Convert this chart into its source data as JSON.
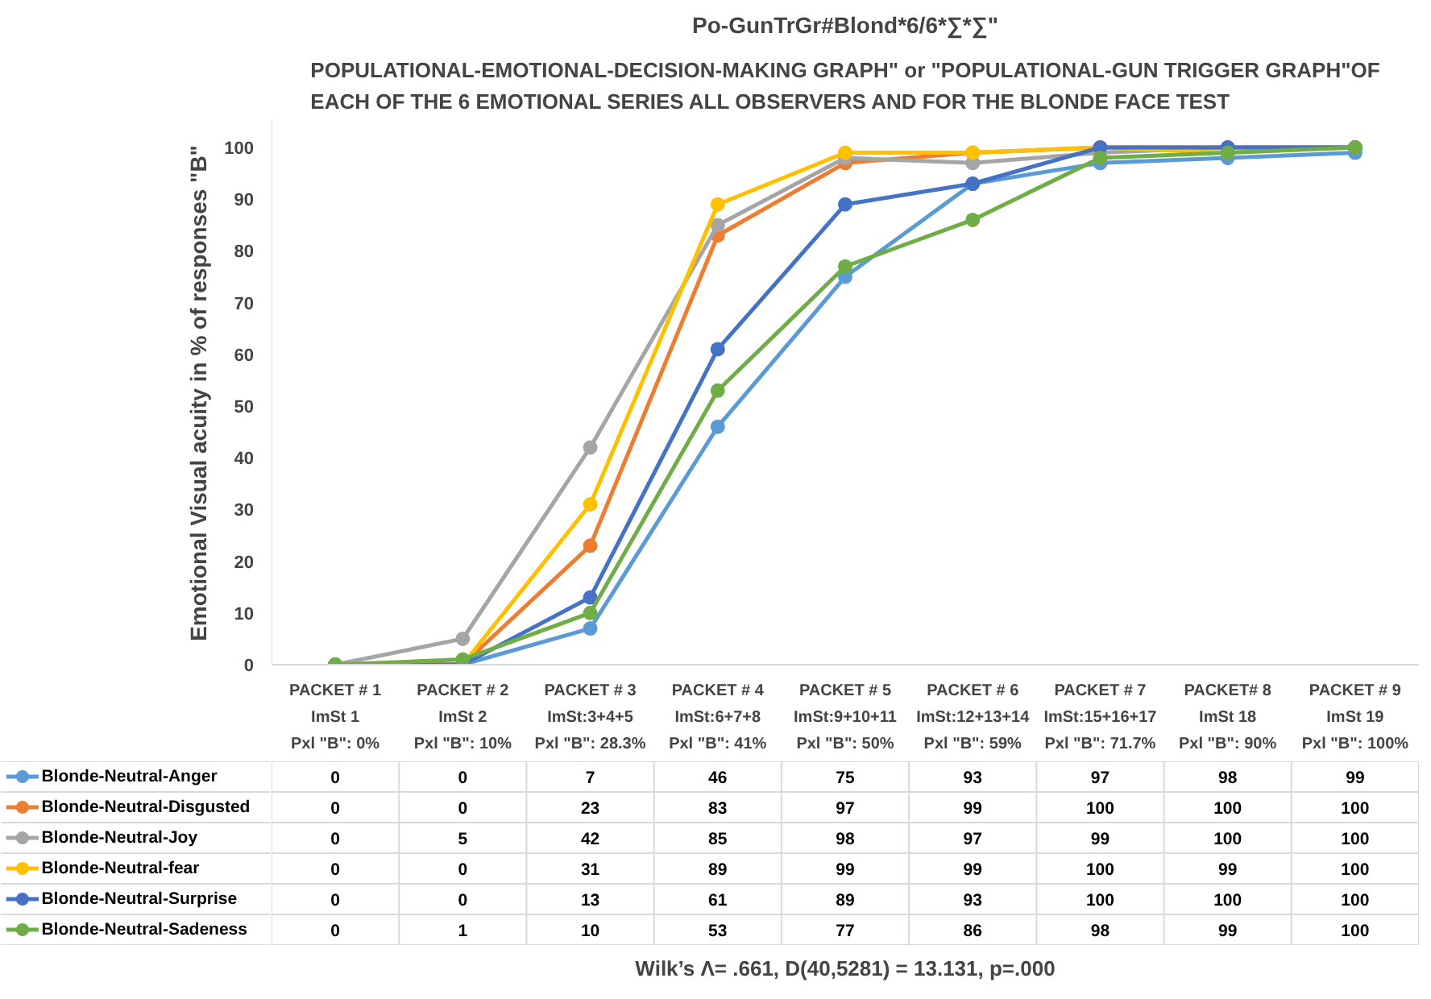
{
  "chart_data": {
    "type": "line",
    "title": "Po-GunTrGr#Blond*6/6*∑*∑\"",
    "subtitle": "POPULATIONAL-EMOTIONAL-DECISION-MAKING GRAPH\" or \"POPULATIONAL-GUN TRIGGER GRAPH\"OF\nEACH OF THE 6 EMOTIONAL SERIES ALL OBSERVERS  AND FOR THE BLONDE FACE TEST",
    "ylabel": "Emotional Visual acuity in % of responses \"B\"",
    "categories": [
      "PACKET # 1\nImSt 1\nPxl \"B\": 0%",
      "PACKET # 2\nImSt 2\nPxl \"B\": 10%",
      "PACKET # 3\nImSt:3+4+5\nPxl \"B\": 28.3%",
      "PACKET # 4\nImSt:6+7+8\nPxl \"B\": 41%",
      "PACKET # 5\nImSt:9+10+11\nPxl \"B\": 50%",
      "PACKET # 6\nImSt:12+13+14\nPxl \"B\": 59%",
      "PACKET # 7\nImSt:15+16+17\nPxl \"B\": 71.7%",
      "PACKET# 8\nImSt 18\nPxl \"B\": 90%",
      "PACKET # 9\nImSt 19\nPxl \"B\": 100%"
    ],
    "series": [
      {
        "name": "Blonde-Neutral-Anger",
        "color": "#5b9bd5",
        "values": [
          0,
          0,
          7,
          46,
          75,
          93,
          97,
          98,
          99
        ]
      },
      {
        "name": "Blonde-Neutral-Disgusted",
        "color": "#ed7d31",
        "values": [
          0,
          0,
          23,
          83,
          97,
          99,
          100,
          100,
          100
        ]
      },
      {
        "name": "Blonde-Neutral-Joy",
        "color": "#a5a5a5",
        "values": [
          0,
          5,
          42,
          85,
          98,
          97,
          99,
          100,
          100
        ]
      },
      {
        "name": "Blonde-Neutral-fear",
        "color": "#ffc000",
        "values": [
          0,
          0,
          31,
          89,
          99,
          99,
          100,
          99,
          100
        ]
      },
      {
        "name": "Blonde-Neutral-Surprise",
        "color": "#4472c4",
        "values": [
          0,
          0,
          13,
          61,
          89,
          93,
          100,
          100,
          100
        ]
      },
      {
        "name": "Blonde-Neutral-Sadeness",
        "color": "#70ad47",
        "values": [
          0,
          1,
          10,
          53,
          77,
          86,
          98,
          99,
          100
        ]
      }
    ],
    "ylim": [
      0,
      105
    ],
    "yticks": [
      0,
      10,
      20,
      30,
      40,
      50,
      60,
      70,
      80,
      90,
      100
    ],
    "grid": false,
    "marker": "circle",
    "line_style": "solid",
    "legend": "bottom",
    "data_labels": true,
    "annotations": [
      "Wilk’s Λ= .661, D(40,5281) = 13.131, p=.000"
    ]
  }
}
